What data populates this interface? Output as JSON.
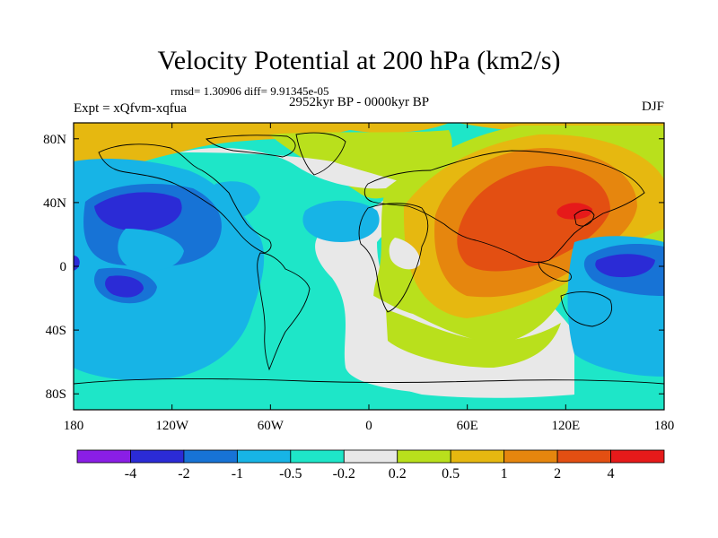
{
  "title": "Velocity Potential at 200 hPa (km2/s)",
  "stats": "rmsd= 1.30906 diff= 9.91345e-05",
  "left_subtitle": "Expt = xQfvm-xqfua",
  "center_subtitle": "2952kyr BP - 0000kyr BP",
  "right_subtitle": "DJF",
  "x_ticks": [
    "180",
    "120W",
    "60W",
    "0",
    "60E",
    "120E",
    "180"
  ],
  "y_ticks": [
    "80N",
    "40N",
    "0",
    "40S",
    "80S"
  ],
  "colorbar": {
    "colors": [
      "#8a1ee6",
      "#2b2bd6",
      "#1773d6",
      "#17b4e6",
      "#1ee6c8",
      "#e8e8e8",
      "#b9e01c",
      "#e6b810",
      "#e6860e",
      "#e34f12",
      "#e61a1a"
    ],
    "labels": [
      "-4",
      "-2",
      "-1",
      "-0.5",
      "-0.2",
      "0.2",
      "0.5",
      "1",
      "2",
      "4"
    ]
  },
  "map": {
    "projection": "cylindrical equidistant",
    "longitude_range": [
      -180,
      180
    ],
    "latitude_range": [
      -90,
      90
    ]
  }
}
